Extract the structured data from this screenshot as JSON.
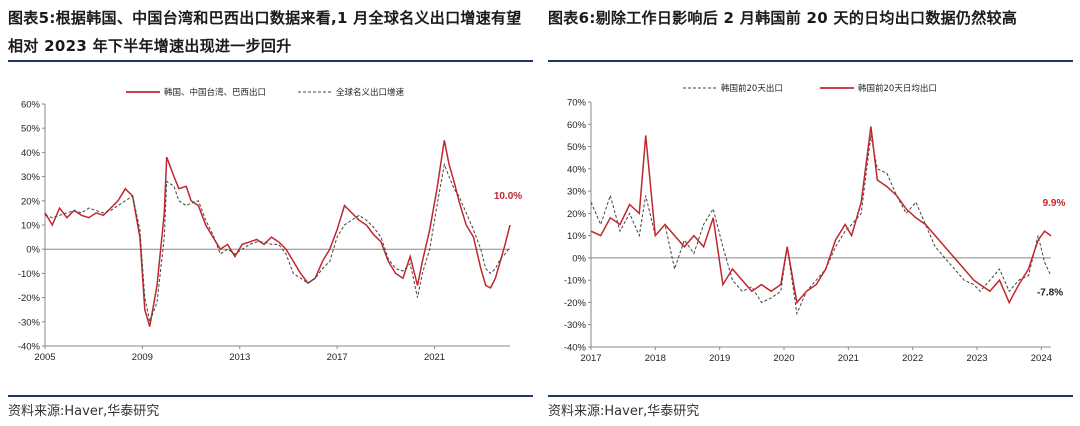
{
  "left": {
    "title": "图表5:根据韩国、中国台湾和巴西出口数据来看,1 月全球名义出口增速有望相对 2023 年下半年增速出现进一步回升",
    "source": "资料来源:Haver,华泰研究",
    "end_label": "10.0%"
  },
  "right": {
    "title": "图表6:剔除工作日影响后 2 月韩国前 20 天的日均出口数据仍然较高",
    "source": "资料来源:Haver,华泰研究",
    "end_label_red": "9.9%",
    "end_label_dark": "-7.8%"
  },
  "colors": {
    "red": "#c0272d",
    "dark": "#444444",
    "rule": "#1f3864"
  },
  "chart_data": [
    {
      "type": "line",
      "x_ticks": [
        "2005",
        "2009",
        "2013",
        "2017",
        "2021"
      ],
      "y_ticks": [
        "60%",
        "50%",
        "40%",
        "30%",
        "20%",
        "10%",
        "0%",
        "-10%",
        "-20%",
        "-30%",
        "-40%"
      ],
      "ylim": [
        -40,
        60
      ],
      "xlim": [
        2005.0,
        2024.1
      ],
      "series": [
        {
          "name": "韩国、中国台湾、巴西出口",
          "style": "solid",
          "color": "#c0272d",
          "x": [
            2005.0,
            2005.3,
            2005.6,
            2005.9,
            2006.2,
            2006.5,
            2006.8,
            2007.1,
            2007.4,
            2007.7,
            2008.0,
            2008.3,
            2008.6,
            2008.9,
            2009.1,
            2009.3,
            2009.6,
            2009.9,
            2010.0,
            2010.3,
            2010.5,
            2010.8,
            2011.0,
            2011.3,
            2011.6,
            2011.9,
            2012.2,
            2012.5,
            2012.8,
            2013.1,
            2013.4,
            2013.7,
            2014.0,
            2014.3,
            2014.6,
            2014.9,
            2015.2,
            2015.5,
            2015.8,
            2016.1,
            2016.4,
            2016.7,
            2017.0,
            2017.3,
            2017.6,
            2017.9,
            2018.2,
            2018.5,
            2018.8,
            2019.1,
            2019.4,
            2019.7,
            2020.0,
            2020.3,
            2020.5,
            2020.8,
            2021.1,
            2021.4,
            2021.6,
            2021.8,
            2022.0,
            2022.3,
            2022.6,
            2022.9,
            2023.1,
            2023.3,
            2023.5,
            2023.7,
            2023.9,
            2024.1
          ],
          "y": [
            15,
            10,
            17,
            13,
            16,
            14,
            13,
            15,
            14,
            17,
            20,
            25,
            22,
            5,
            -25,
            -32,
            -15,
            15,
            38,
            30,
            25,
            26,
            20,
            18,
            10,
            5,
            0,
            2,
            -3,
            2,
            3,
            4,
            2,
            5,
            3,
            0,
            -5,
            -10,
            -14,
            -12,
            -5,
            0,
            8,
            18,
            15,
            12,
            10,
            6,
            3,
            -5,
            -10,
            -12,
            -3,
            -15,
            -5,
            8,
            25,
            45,
            35,
            28,
            20,
            10,
            5,
            -8,
            -15,
            -16,
            -12,
            -5,
            2,
            10
          ]
        },
        {
          "name": "全球名义出口增速",
          "style": "dashed",
          "color": "#444444",
          "x": [
            2005.0,
            2005.3,
            2005.6,
            2005.9,
            2006.2,
            2006.5,
            2006.8,
            2007.1,
            2007.4,
            2007.7,
            2008.0,
            2008.3,
            2008.6,
            2008.9,
            2009.1,
            2009.3,
            2009.6,
            2009.9,
            2010.0,
            2010.3,
            2010.5,
            2010.8,
            2011.0,
            2011.3,
            2011.6,
            2011.9,
            2012.2,
            2012.5,
            2012.8,
            2013.1,
            2013.4,
            2013.7,
            2014.0,
            2014.3,
            2014.6,
            2014.9,
            2015.2,
            2015.5,
            2015.8,
            2016.1,
            2016.4,
            2016.7,
            2017.0,
            2017.3,
            2017.6,
            2017.9,
            2018.2,
            2018.5,
            2018.8,
            2019.1,
            2019.4,
            2019.7,
            2020.0,
            2020.3,
            2020.5,
            2020.8,
            2021.1,
            2021.4,
            2021.6,
            2021.8,
            2022.0,
            2022.3,
            2022.6,
            2022.9,
            2023.1,
            2023.3,
            2023.5,
            2023.7,
            2023.9,
            2024.1
          ],
          "y": [
            14,
            13,
            14,
            15,
            16,
            15,
            17,
            16,
            15,
            16,
            18,
            20,
            22,
            8,
            -20,
            -30,
            -22,
            5,
            28,
            26,
            20,
            18,
            19,
            20,
            12,
            6,
            -2,
            0,
            -2,
            0,
            2,
            3,
            3,
            2,
            2,
            -2,
            -10,
            -12,
            -14,
            -12,
            -8,
            -5,
            5,
            10,
            12,
            14,
            12,
            9,
            5,
            -4,
            -8,
            -9,
            -6,
            -20,
            -10,
            0,
            18,
            35,
            30,
            25,
            22,
            15,
            8,
            0,
            -8,
            -10,
            -8,
            -4,
            -2,
            1
          ]
        }
      ]
    },
    {
      "type": "line",
      "x_ticks": [
        "2017",
        "2018",
        "2019",
        "2020",
        "2021",
        "2022",
        "2023",
        "2024"
      ],
      "y_ticks": [
        "70%",
        "60%",
        "50%",
        "40%",
        "30%",
        "20%",
        "10%",
        "0%",
        "-10%",
        "-20%",
        "-30%",
        "-40%"
      ],
      "ylim": [
        -40,
        70
      ],
      "xlim": [
        2017.0,
        2024.15
      ],
      "series": [
        {
          "name": "韩国前20天出口",
          "style": "dashed",
          "color": "#444444",
          "x": [
            2017.0,
            2017.15,
            2017.3,
            2017.45,
            2017.6,
            2017.75,
            2017.85,
            2018.0,
            2018.15,
            2018.3,
            2018.45,
            2018.6,
            2018.75,
            2018.9,
            2019.05,
            2019.2,
            2019.35,
            2019.5,
            2019.65,
            2019.8,
            2019.95,
            2020.05,
            2020.2,
            2020.35,
            2020.5,
            2020.65,
            2020.8,
            2020.95,
            2021.05,
            2021.2,
            2021.35,
            2021.45,
            2021.6,
            2021.75,
            2021.9,
            2022.05,
            2022.2,
            2022.35,
            2022.5,
            2022.65,
            2022.8,
            2022.95,
            2023.05,
            2023.2,
            2023.35,
            2023.5,
            2023.65,
            2023.8,
            2023.95,
            2024.05,
            2024.15
          ],
          "y": [
            25,
            15,
            28,
            12,
            20,
            10,
            28,
            10,
            15,
            -5,
            8,
            2,
            15,
            22,
            5,
            -10,
            -15,
            -13,
            -20,
            -18,
            -15,
            5,
            -25,
            -15,
            -10,
            -5,
            5,
            12,
            15,
            20,
            55,
            40,
            38,
            28,
            20,
            25,
            15,
            5,
            0,
            -5,
            -10,
            -12,
            -15,
            -10,
            -5,
            -15,
            -10,
            -8,
            10,
            -2,
            -8
          ]
        },
        {
          "name": "韩国前20天日均出口",
          "style": "solid",
          "color": "#c0272d",
          "x": [
            2017.0,
            2017.15,
            2017.3,
            2017.45,
            2017.6,
            2017.75,
            2017.85,
            2018.0,
            2018.15,
            2018.3,
            2018.45,
            2018.6,
            2018.75,
            2018.9,
            2019.05,
            2019.2,
            2019.35,
            2019.5,
            2019.65,
            2019.8,
            2019.95,
            2020.05,
            2020.2,
            2020.35,
            2020.5,
            2020.65,
            2020.8,
            2020.95,
            2021.05,
            2021.2,
            2021.35,
            2021.45,
            2021.6,
            2021.75,
            2021.9,
            2022.05,
            2022.2,
            2022.35,
            2022.5,
            2022.65,
            2022.8,
            2022.95,
            2023.05,
            2023.2,
            2023.35,
            2023.5,
            2023.65,
            2023.8,
            2023.95,
            2024.05,
            2024.15
          ],
          "y": [
            12,
            10,
            18,
            15,
            24,
            20,
            55,
            10,
            15,
            10,
            5,
            10,
            5,
            18,
            -12,
            -5,
            -10,
            -15,
            -12,
            -15,
            -12,
            5,
            -20,
            -15,
            -12,
            -5,
            8,
            15,
            10,
            25,
            59,
            35,
            32,
            28,
            22,
            18,
            15,
            10,
            5,
            0,
            -5,
            -10,
            -12,
            -15,
            -10,
            -20,
            -12,
            -5,
            8,
            12,
            9.9
          ]
        }
      ]
    }
  ]
}
